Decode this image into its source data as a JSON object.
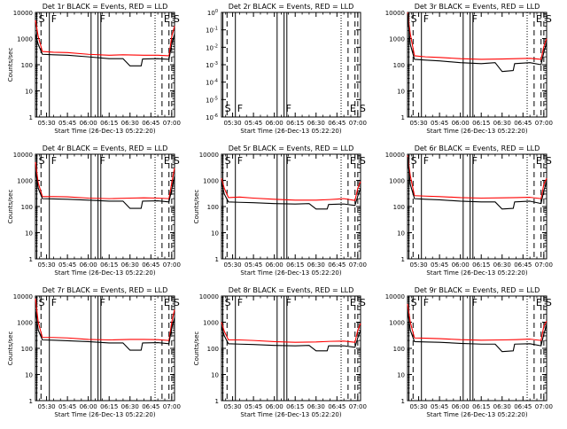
{
  "figure": {
    "panels": [
      {
        "title": "Det 1r BLACK = Events, RED = LLD",
        "ylabel": "Counts/sec",
        "xlabel": "Start Time (26-Dec-13 05:22:20)",
        "empty": false
      },
      {
        "title": "Det 2r BLACK = Events, RED = LLD",
        "ylabel": "",
        "xlabel": "Start Time (26-Dec-13 05:22:20)",
        "empty": true
      },
      {
        "title": "Det 3r BLACK = Events, RED = LLD",
        "ylabel": "",
        "xlabel": "Start Time (26-Dec-13 05:22:20)",
        "empty": false
      },
      {
        "title": "Det 4r BLACK = Events, RED = LLD",
        "ylabel": "Counts/sec",
        "xlabel": "Start Time (26-Dec-13 05:22:20)",
        "empty": false
      },
      {
        "title": "Det 5r BLACK = Events, RED = LLD",
        "ylabel": "Counts/sec",
        "xlabel": "Start Time (26-Dec-13 05:22:20)",
        "empty": false
      },
      {
        "title": "Det 6r BLACK = Events, RED = LLD",
        "ylabel": "",
        "xlabel": "Start Time (26-Dec-13 05:22:20)",
        "empty": false
      },
      {
        "title": "Det 7r BLACK = Events, RED = LLD",
        "ylabel": "Counts/sec",
        "xlabel": "Start Time (26-Dec-13 05:22:20)",
        "empty": false
      },
      {
        "title": "Det 8r BLACK = Events, RED = LLD",
        "ylabel": "Counts/sec",
        "xlabel": "Start Time (26-Dec-13 05:22:20)",
        "empty": false
      },
      {
        "title": "Det 9r BLACK = Events, RED = LLD",
        "ylabel": "",
        "xlabel": "Start Time (26-Dec-13 05:22:20)",
        "empty": false
      }
    ]
  },
  "chart_data": {
    "type": "line",
    "x_unit": "HH:MM on 26-Dec-13",
    "xlim": [
      "05:22",
      "07:02"
    ],
    "xticks": [
      "05:30",
      "05:45",
      "06:00",
      "06:15",
      "06:30",
      "06:45",
      "07:00"
    ],
    "ylim": [
      1,
      10000
    ],
    "yscale": "log",
    "yticks": [
      "1",
      "10",
      "100",
      "1000",
      "10000"
    ],
    "empty_panel_ylim": [
      1e-06,
      1
    ],
    "empty_panel_yticks": [
      "10^-6",
      "10^-5",
      "10^-4",
      "10^-3",
      "10^-2",
      "10^-1",
      "10^0"
    ],
    "series_colors": {
      "events": "#000000",
      "lld": "#ff0000"
    },
    "event_markers": [
      {
        "time": "05:23",
        "letter": "S",
        "style": "solid"
      },
      {
        "time": "05:26",
        "letter": "",
        "style": "dashed"
      },
      {
        "time": "05:32",
        "letter": "F",
        "style": "solid"
      },
      {
        "time": "06:02",
        "letter": "",
        "style": "solid"
      },
      {
        "time": "06:07",
        "letter": "F",
        "style": "solid"
      },
      {
        "time": "06:09",
        "letter": "",
        "style": "solid"
      },
      {
        "time": "06:48",
        "letter": "",
        "style": "dotted"
      },
      {
        "time": "06:53",
        "letter": "E",
        "style": "dashed"
      },
      {
        "time": "06:58",
        "letter": "",
        "style": "dashed"
      },
      {
        "time": "07:00",
        "letter": "S",
        "style": "dashed"
      }
    ],
    "panels": [
      {
        "detector": "1r",
        "events": [
          [
            "05:22",
            1500
          ],
          [
            "05:24",
            600
          ],
          [
            "05:27",
            250
          ],
          [
            "05:35",
            240
          ],
          [
            "05:45",
            230
          ],
          [
            "06:00",
            200
          ],
          [
            "06:15",
            170
          ],
          [
            "06:25",
            170
          ],
          [
            "06:30",
            90
          ],
          [
            "06:38",
            90
          ],
          [
            "06:39",
            165
          ],
          [
            "06:50",
            170
          ],
          [
            "06:58",
            160
          ],
          [
            "07:00",
            600
          ],
          [
            "07:02",
            1500
          ]
        ],
        "lld": [
          [
            "05:22",
            5000
          ],
          [
            "05:24",
            1200
          ],
          [
            "05:27",
            320
          ],
          [
            "05:35",
            300
          ],
          [
            "05:45",
            290
          ],
          [
            "06:00",
            250
          ],
          [
            "06:15",
            230
          ],
          [
            "06:25",
            240
          ],
          [
            "06:40",
            230
          ],
          [
            "06:50",
            230
          ],
          [
            "06:58",
            220
          ],
          [
            "07:00",
            1200
          ],
          [
            "07:02",
            3000
          ]
        ]
      },
      {
        "detector": "2r",
        "events": [],
        "lld": []
      },
      {
        "detector": "3r",
        "events": [
          [
            "05:22",
            9000
          ],
          [
            "05:24",
            600
          ],
          [
            "05:27",
            160
          ],
          [
            "05:35",
            150
          ],
          [
            "05:45",
            140
          ],
          [
            "06:00",
            120
          ],
          [
            "06:15",
            110
          ],
          [
            "06:25",
            120
          ],
          [
            "06:30",
            55
          ],
          [
            "06:38",
            60
          ],
          [
            "06:39",
            110
          ],
          [
            "06:50",
            120
          ],
          [
            "06:58",
            100
          ],
          [
            "07:00",
            300
          ],
          [
            "07:02",
            700
          ]
        ],
        "lld": [
          [
            "05:22",
            10000
          ],
          [
            "05:24",
            1500
          ],
          [
            "05:27",
            220
          ],
          [
            "05:35",
            200
          ],
          [
            "05:45",
            190
          ],
          [
            "06:00",
            170
          ],
          [
            "06:15",
            160
          ],
          [
            "06:30",
            165
          ],
          [
            "06:40",
            170
          ],
          [
            "06:50",
            175
          ],
          [
            "06:58",
            160
          ],
          [
            "07:00",
            500
          ],
          [
            "07:02",
            1000
          ]
        ]
      },
      {
        "detector": "4r",
        "events": [
          [
            "05:22",
            2500
          ],
          [
            "05:24",
            500
          ],
          [
            "05:27",
            200
          ],
          [
            "05:35",
            195
          ],
          [
            "05:45",
            190
          ],
          [
            "06:00",
            175
          ],
          [
            "06:15",
            160
          ],
          [
            "06:25",
            160
          ],
          [
            "06:30",
            85
          ],
          [
            "06:38",
            85
          ],
          [
            "06:39",
            160
          ],
          [
            "06:50",
            165
          ],
          [
            "06:58",
            150
          ],
          [
            "07:00",
            450
          ],
          [
            "07:02",
            1500
          ]
        ],
        "lld": [
          [
            "05:22",
            5000
          ],
          [
            "05:24",
            800
          ],
          [
            "05:27",
            240
          ],
          [
            "05:35",
            240
          ],
          [
            "05:45",
            235
          ],
          [
            "06:00",
            210
          ],
          [
            "06:15",
            200
          ],
          [
            "06:30",
            210
          ],
          [
            "06:40",
            215
          ],
          [
            "06:50",
            210
          ],
          [
            "06:58",
            200
          ],
          [
            "07:00",
            800
          ],
          [
            "07:02",
            3000
          ]
        ]
      },
      {
        "detector": "5r",
        "events": [
          [
            "05:22",
            900
          ],
          [
            "05:24",
            300
          ],
          [
            "05:27",
            150
          ],
          [
            "05:35",
            145
          ],
          [
            "05:45",
            140
          ],
          [
            "06:00",
            130
          ],
          [
            "06:15",
            125
          ],
          [
            "06:25",
            130
          ],
          [
            "06:30",
            80
          ],
          [
            "06:38",
            80
          ],
          [
            "06:39",
            120
          ],
          [
            "06:50",
            125
          ],
          [
            "06:58",
            110
          ],
          [
            "07:00",
            250
          ],
          [
            "07:02",
            500
          ]
        ],
        "lld": [
          [
            "05:22",
            1200
          ],
          [
            "05:24",
            500
          ],
          [
            "05:27",
            220
          ],
          [
            "05:35",
            230
          ],
          [
            "05:45",
            210
          ],
          [
            "06:00",
            190
          ],
          [
            "06:15",
            175
          ],
          [
            "06:30",
            175
          ],
          [
            "06:40",
            185
          ],
          [
            "06:50",
            200
          ],
          [
            "06:58",
            170
          ],
          [
            "07:00",
            500
          ],
          [
            "07:02",
            900
          ]
        ]
      },
      {
        "detector": "6r",
        "events": [
          [
            "05:22",
            8000
          ],
          [
            "05:24",
            700
          ],
          [
            "05:27",
            200
          ],
          [
            "05:35",
            190
          ],
          [
            "05:45",
            180
          ],
          [
            "06:00",
            160
          ],
          [
            "06:15",
            150
          ],
          [
            "06:25",
            150
          ],
          [
            "06:30",
            80
          ],
          [
            "06:38",
            85
          ],
          [
            "06:39",
            150
          ],
          [
            "06:50",
            160
          ],
          [
            "06:58",
            130
          ],
          [
            "07:00",
            400
          ],
          [
            "07:02",
            900
          ]
        ],
        "lld": [
          [
            "05:22",
            9000
          ],
          [
            "05:24",
            1500
          ],
          [
            "05:27",
            260
          ],
          [
            "05:35",
            250
          ],
          [
            "05:45",
            240
          ],
          [
            "06:00",
            220
          ],
          [
            "06:15",
            210
          ],
          [
            "06:30",
            215
          ],
          [
            "06:40",
            220
          ],
          [
            "06:50",
            225
          ],
          [
            "06:58",
            200
          ],
          [
            "07:00",
            700
          ],
          [
            "07:02",
            1200
          ]
        ]
      },
      {
        "detector": "7r",
        "events": [
          [
            "05:22",
            3000
          ],
          [
            "05:24",
            500
          ],
          [
            "05:27",
            210
          ],
          [
            "05:35",
            205
          ],
          [
            "05:45",
            195
          ],
          [
            "06:00",
            180
          ],
          [
            "06:15",
            160
          ],
          [
            "06:25",
            160
          ],
          [
            "06:30",
            85
          ],
          [
            "06:38",
            85
          ],
          [
            "06:39",
            160
          ],
          [
            "06:50",
            165
          ],
          [
            "06:58",
            150
          ],
          [
            "07:00",
            600
          ],
          [
            "07:02",
            1500
          ]
        ],
        "lld": [
          [
            "05:22",
            8000
          ],
          [
            "05:24",
            1000
          ],
          [
            "05:27",
            260
          ],
          [
            "05:35",
            260
          ],
          [
            "05:45",
            250
          ],
          [
            "06:00",
            220
          ],
          [
            "06:15",
            210
          ],
          [
            "06:30",
            220
          ],
          [
            "06:40",
            220
          ],
          [
            "06:50",
            215
          ],
          [
            "06:58",
            200
          ],
          [
            "07:00",
            1000
          ],
          [
            "07:02",
            3000
          ]
        ]
      },
      {
        "detector": "8r",
        "events": [
          [
            "05:22",
            700
          ],
          [
            "05:24",
            300
          ],
          [
            "05:27",
            150
          ],
          [
            "05:35",
            145
          ],
          [
            "05:45",
            140
          ],
          [
            "06:00",
            130
          ],
          [
            "06:15",
            125
          ],
          [
            "06:25",
            130
          ],
          [
            "06:30",
            80
          ],
          [
            "06:38",
            80
          ],
          [
            "06:39",
            125
          ],
          [
            "06:50",
            125
          ],
          [
            "06:58",
            110
          ],
          [
            "07:00",
            250
          ],
          [
            "07:02",
            500
          ]
        ],
        "lld": [
          [
            "05:22",
            1000
          ],
          [
            "05:24",
            450
          ],
          [
            "05:27",
            210
          ],
          [
            "05:35",
            210
          ],
          [
            "05:45",
            200
          ],
          [
            "06:00",
            180
          ],
          [
            "06:15",
            170
          ],
          [
            "06:30",
            175
          ],
          [
            "06:40",
            185
          ],
          [
            "06:50",
            190
          ],
          [
            "06:58",
            170
          ],
          [
            "07:00",
            500
          ],
          [
            "07:02",
            900
          ]
        ]
      },
      {
        "detector": "9r",
        "events": [
          [
            "05:22",
            3000
          ],
          [
            "05:24",
            500
          ],
          [
            "05:27",
            180
          ],
          [
            "05:35",
            175
          ],
          [
            "05:45",
            170
          ],
          [
            "06:00",
            155
          ],
          [
            "06:15",
            145
          ],
          [
            "06:25",
            145
          ],
          [
            "06:30",
            75
          ],
          [
            "06:38",
            80
          ],
          [
            "06:39",
            145
          ],
          [
            "06:50",
            150
          ],
          [
            "06:58",
            125
          ],
          [
            "07:00",
            350
          ],
          [
            "07:02",
            800
          ]
        ],
        "lld": [
          [
            "05:22",
            5000
          ],
          [
            "05:24",
            1000
          ],
          [
            "05:27",
            250
          ],
          [
            "05:35",
            245
          ],
          [
            "05:45",
            235
          ],
          [
            "06:00",
            215
          ],
          [
            "06:15",
            205
          ],
          [
            "06:30",
            210
          ],
          [
            "06:40",
            215
          ],
          [
            "06:50",
            225
          ],
          [
            "06:58",
            200
          ],
          [
            "07:00",
            700
          ],
          [
            "07:02",
            1100
          ]
        ]
      }
    ]
  }
}
